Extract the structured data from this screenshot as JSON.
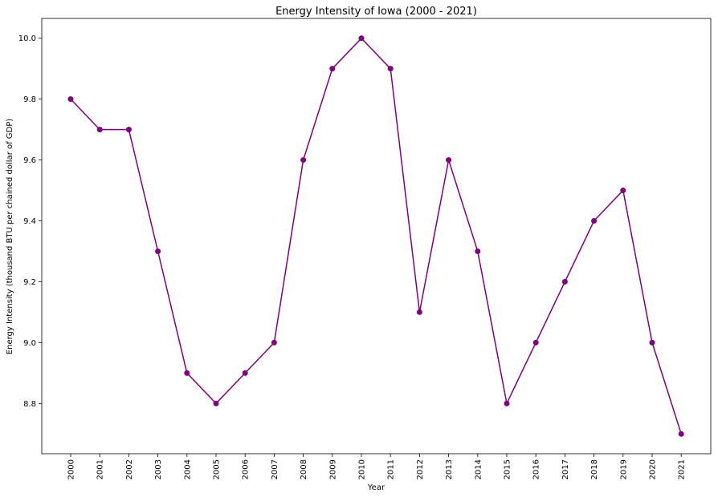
{
  "chart_data": {
    "type": "line",
    "title": "Energy Intensity of Iowa (2000 - 2021)",
    "xlabel": "Year",
    "ylabel": "Energy Intensity (thousand BTU per chained dollar of GDP)",
    "categories": [
      "2000",
      "2001",
      "2002",
      "2003",
      "2004",
      "2005",
      "2006",
      "2007",
      "2008",
      "2009",
      "2010",
      "2011",
      "2012",
      "2013",
      "2014",
      "2015",
      "2016",
      "2017",
      "2018",
      "2019",
      "2020",
      "2021"
    ],
    "values": [
      9.8,
      9.7,
      9.7,
      9.3,
      8.9,
      8.8,
      8.9,
      9.0,
      9.6,
      9.9,
      10.0,
      9.9,
      9.1,
      9.6,
      9.3,
      8.8,
      9.0,
      9.2,
      9.4,
      9.5,
      9.0,
      8.7
    ],
    "ylim": [
      8.635,
      10.065
    ],
    "yticks": [
      "8.8",
      "9.0",
      "9.2",
      "9.4",
      "9.6",
      "9.8",
      "10.0"
    ],
    "grid": false,
    "color": "#800080",
    "marker": "circle"
  }
}
